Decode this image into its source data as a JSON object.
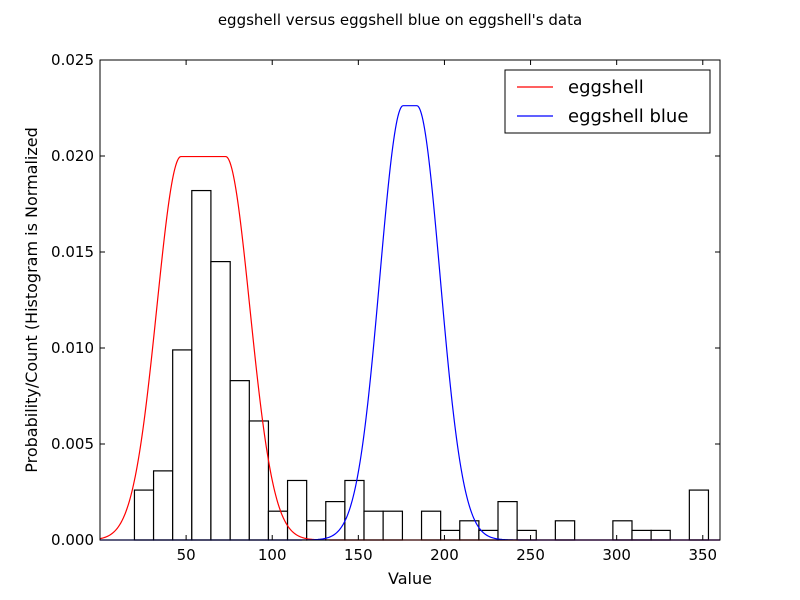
{
  "chart_data": {
    "type": "bar",
    "title": "eggshell versus eggshell blue on eggshell's data",
    "xlabel": "Value",
    "ylabel": "Probability/Count (Histogram is Normalized",
    "xlim": [
      0,
      360
    ],
    "ylim": [
      0,
      0.025
    ],
    "x_ticks": [
      50,
      100,
      150,
      200,
      250,
      300,
      350
    ],
    "x_tick_labels": [
      "50",
      "100",
      "150",
      "200",
      "250",
      "300",
      "350"
    ],
    "y_ticks": [
      0,
      0.005,
      0.01,
      0.015,
      0.02,
      0.025
    ],
    "y_tick_labels": [
      "0.000",
      "0.005",
      "0.010",
      "0.015",
      "0.020",
      "0.025"
    ],
    "grid": false,
    "legend": "top-right",
    "histogram": {
      "bin_edges": [
        20,
        31.1,
        42.2,
        53.3,
        64.4,
        75.6,
        86.7,
        97.8,
        108.9,
        120,
        131.1,
        142.2,
        153.3,
        164.4,
        175.6,
        186.7,
        197.8,
        208.9,
        220,
        231.1,
        242.2,
        253.3,
        264.4,
        275.6,
        286.7,
        297.8,
        308.9,
        320,
        331.1,
        342.2,
        353.3
      ],
      "values": [
        0.0026,
        0.0036,
        0.0099,
        0.0182,
        0.0145,
        0.0083,
        0.0062,
        0.0015,
        0.0031,
        0.001,
        0.002,
        0.0031,
        0.0015,
        0.0015,
        0,
        0.0015,
        0.0005,
        0.001,
        0.0005,
        0.002,
        0.0005,
        0,
        0.001,
        0,
        0,
        0.001,
        0.0005,
        0.0005,
        0,
        0.0026
      ],
      "edge_color": "#000000",
      "face_color": "#ffffff"
    },
    "series": [
      {
        "name": "eggshell",
        "color": "#ff0000",
        "shape": "flat-top",
        "center": 60,
        "plateau_half_width": 13,
        "width": 14,
        "peak": 0.01997
      },
      {
        "name": "eggshell blue",
        "color": "#0000ff",
        "shape": "flat-top",
        "center": 180,
        "plateau_half_width": 4,
        "width": 13.5,
        "peak": 0.02262
      }
    ]
  }
}
